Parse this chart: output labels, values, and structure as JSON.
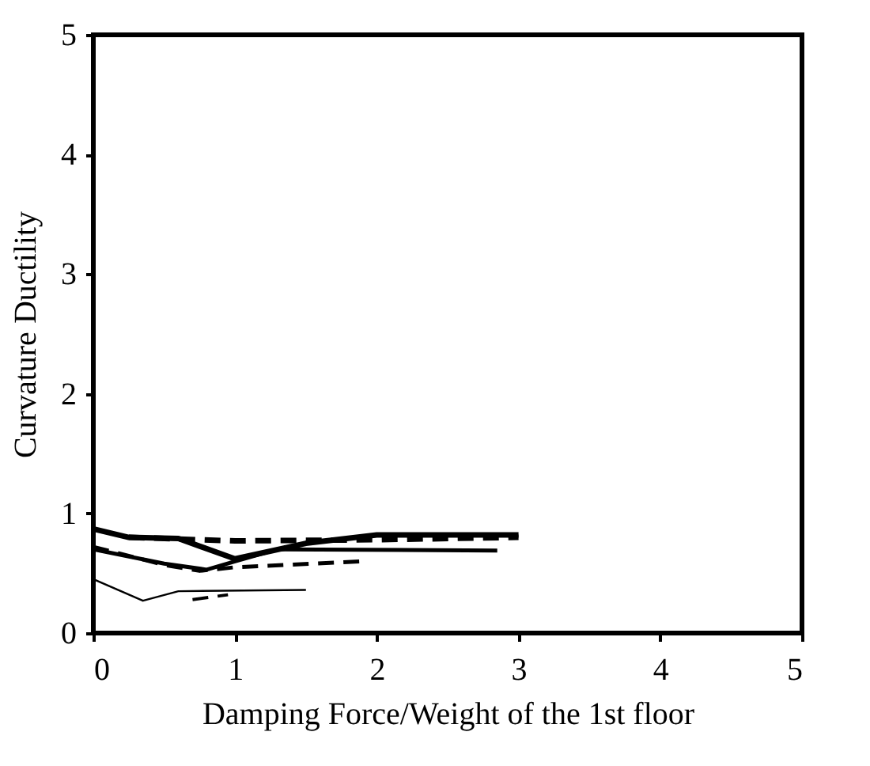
{
  "chart_data": {
    "type": "line",
    "xlabel": "Damping Force/Weight of the 1st floor",
    "ylabel": "Curvature Ductility",
    "xlim": [
      0,
      5
    ],
    "ylim": [
      0,
      5
    ],
    "xticks": [
      0,
      1,
      2,
      3,
      4,
      5
    ],
    "yticks": [
      0,
      1,
      2,
      3,
      4,
      5
    ],
    "grid": false,
    "marker": "none",
    "series": [
      {
        "color": "#000000",
        "line_style": "solid",
        "x": [
          0,
          0.25,
          0.6,
          1.0,
          1.5,
          2.0,
          3.0
        ],
        "values": [
          0.87,
          0.8,
          0.79,
          0.62,
          0.75,
          0.82,
          0.82
        ]
      },
      {
        "color": "#000000",
        "line_style": "dashed",
        "x": [
          0.25,
          1.0,
          2.0,
          3.0
        ],
        "values": [
          0.8,
          0.77,
          0.78,
          0.8
        ]
      },
      {
        "color": "#000000",
        "line_style": "solid",
        "x": [
          0,
          0.5,
          0.8,
          1.0,
          1.3,
          2.85
        ],
        "values": [
          0.7,
          0.58,
          0.53,
          0.6,
          0.7,
          0.69
        ]
      },
      {
        "color": "#000000",
        "line_style": "dashed",
        "x": [
          0,
          0.5,
          0.75,
          1.0,
          1.9
        ],
        "values": [
          0.72,
          0.57,
          0.52,
          0.55,
          0.6
        ]
      },
      {
        "color": "#000000",
        "line_style": "solid",
        "x": [
          0,
          0.35,
          0.6,
          1.5
        ],
        "values": [
          0.45,
          0.27,
          0.35,
          0.36
        ]
      },
      {
        "color": "#000000",
        "line_style": "dashed",
        "x": [
          0.7,
          0.95
        ],
        "values": [
          0.28,
          0.32
        ]
      }
    ]
  }
}
